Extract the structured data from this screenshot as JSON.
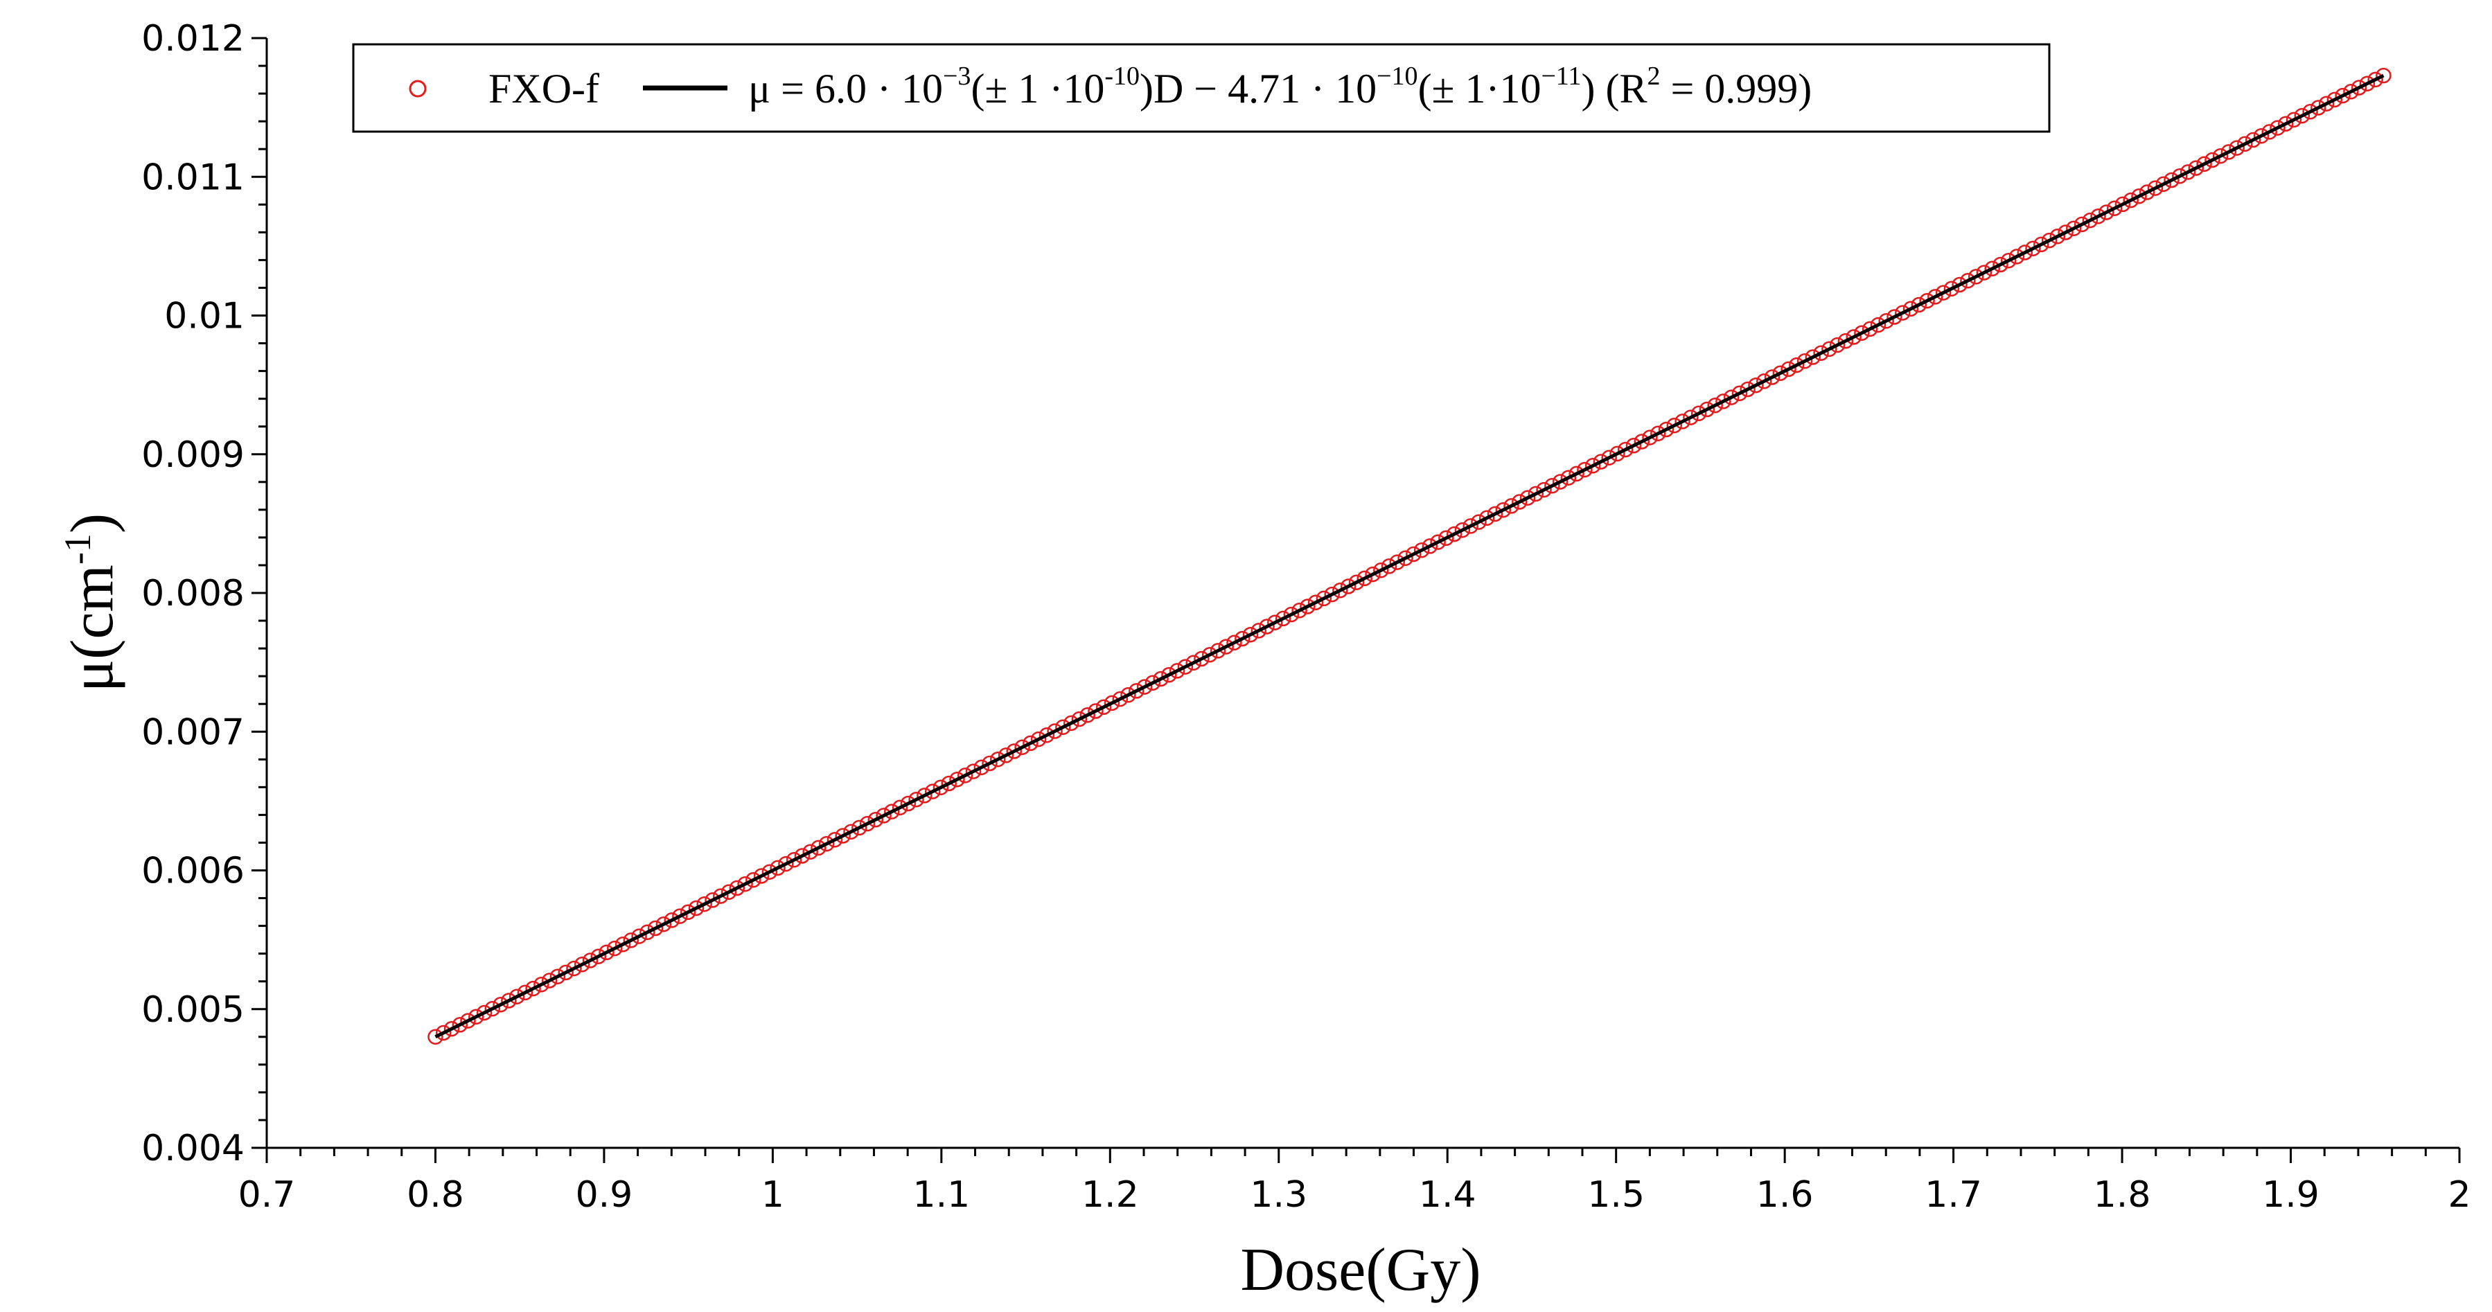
{
  "chart_data": {
    "type": "scatter",
    "xlabel": "Dose(Gy)",
    "ylabel_main": "μ(cm",
    "ylabel_sup": "-1",
    "ylabel_close": ")",
    "xlim": [
      0.7,
      2.0
    ],
    "ylim": [
      0.004,
      0.012
    ],
    "x_ticks": [
      0.7,
      0.8,
      0.9,
      1.0,
      1.1,
      1.2,
      1.3,
      1.4,
      1.5,
      1.6,
      1.7,
      1.8,
      1.9,
      2.0
    ],
    "x_tick_labels": [
      "0.7",
      "0.8",
      "0.9",
      "1",
      "1.1",
      "1.2",
      "1.3",
      "1.4",
      "1.5",
      "1.6",
      "1.7",
      "1.8",
      "1.9",
      "2"
    ],
    "y_ticks": [
      0.004,
      0.005,
      0.006,
      0.007,
      0.008,
      0.009,
      0.01,
      0.011,
      0.012
    ],
    "y_tick_labels": [
      "0.004",
      "0.005",
      "0.006",
      "0.007",
      "0.008",
      "0.009",
      "0.01",
      "0.011",
      "0.012"
    ],
    "grid": false,
    "legend_position": "top",
    "series": [
      {
        "name": "FXO-f",
        "kind": "scatter",
        "marker": "open-circle",
        "color": "#e41a1c",
        "x_range": [
          0.8,
          1.955
        ],
        "y_range": [
          0.0048,
          0.01173
        ]
      },
      {
        "kind": "line",
        "color": "#000000",
        "slope": 0.006,
        "intercept": -4.71e-10,
        "x_range": [
          0.8,
          1.955
        ]
      }
    ],
    "legend": {
      "scatter_label": "FXO-f",
      "fit_parts": [
        {
          "t": "μ = 6.0 · 10",
          "sup": false
        },
        {
          "t": "−3",
          "sup": true
        },
        {
          "t": "(± 1 ·10",
          "sup": false
        },
        {
          "t": "-10",
          "sup": true
        },
        {
          "t": ")D − 4.71 · 10",
          "sup": false
        },
        {
          "t": "−10",
          "sup": true
        },
        {
          "t": "(± 1·10",
          "sup": false
        },
        {
          "t": "−11",
          "sup": true
        },
        {
          "t": ") (R",
          "sup": false
        },
        {
          "t": "2",
          "sup": true
        },
        {
          "t": " = 0.999)",
          "sup": false
        }
      ]
    }
  }
}
